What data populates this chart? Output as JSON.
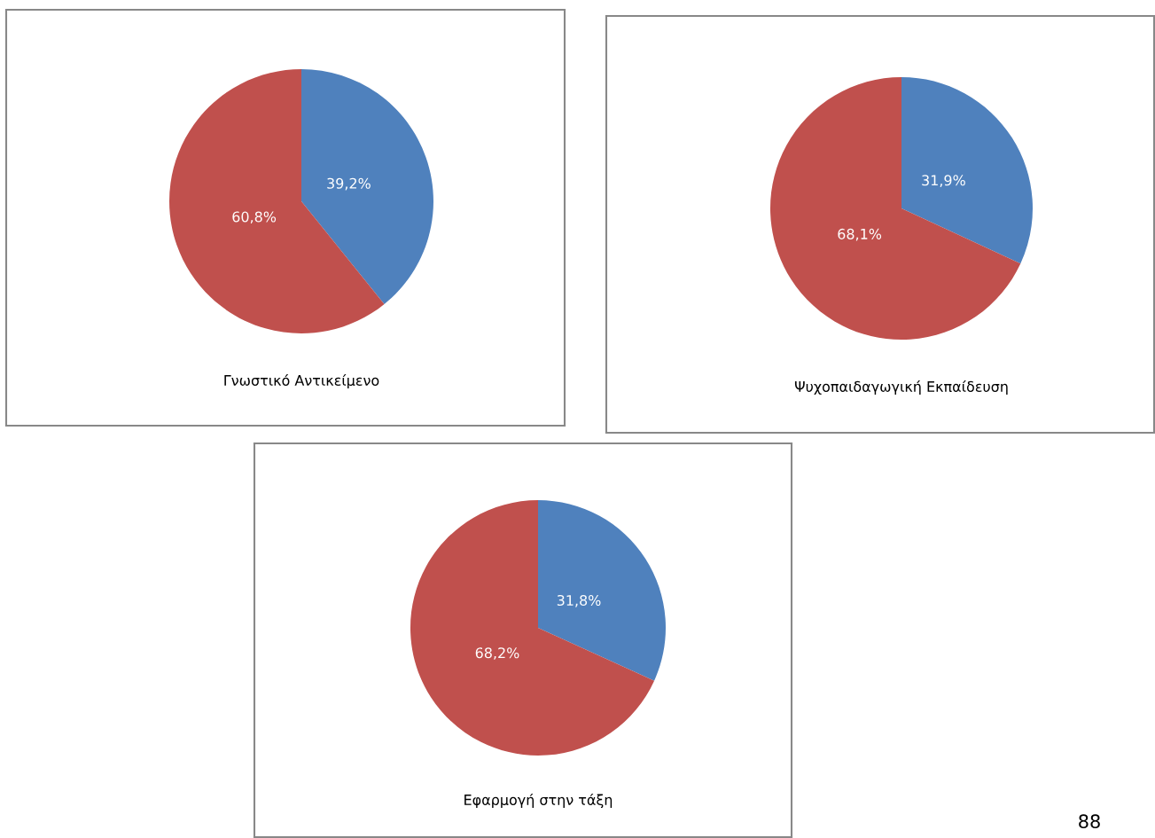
{
  "chart_data": [
    {
      "type": "pie",
      "title": "Γνωστικό Αντικείμενο",
      "categories": [
        null,
        null
      ],
      "values": [
        39.2,
        60.8
      ],
      "colors": [
        "#4f81bd",
        "#c0504d"
      ],
      "value_labels": [
        "39,2%",
        "60,8%"
      ]
    },
    {
      "type": "pie",
      "title": "Ψυχοπαιδαγωγική Εκπαίδευση",
      "categories": [
        null,
        null
      ],
      "values": [
        31.9,
        68.1
      ],
      "colors": [
        "#4f81bd",
        "#c0504d"
      ],
      "value_labels": [
        "31,9%",
        "68,1%"
      ]
    },
    {
      "type": "pie",
      "title": "Εφαρμογή στην τάξη",
      "categories": [
        null,
        null
      ],
      "values": [
        31.8,
        68.2
      ],
      "colors": [
        "#4f81bd",
        "#c0504d"
      ],
      "value_labels": [
        "31,8%",
        "68,2%"
      ],
      "annotations": [
        "88"
      ]
    }
  ]
}
